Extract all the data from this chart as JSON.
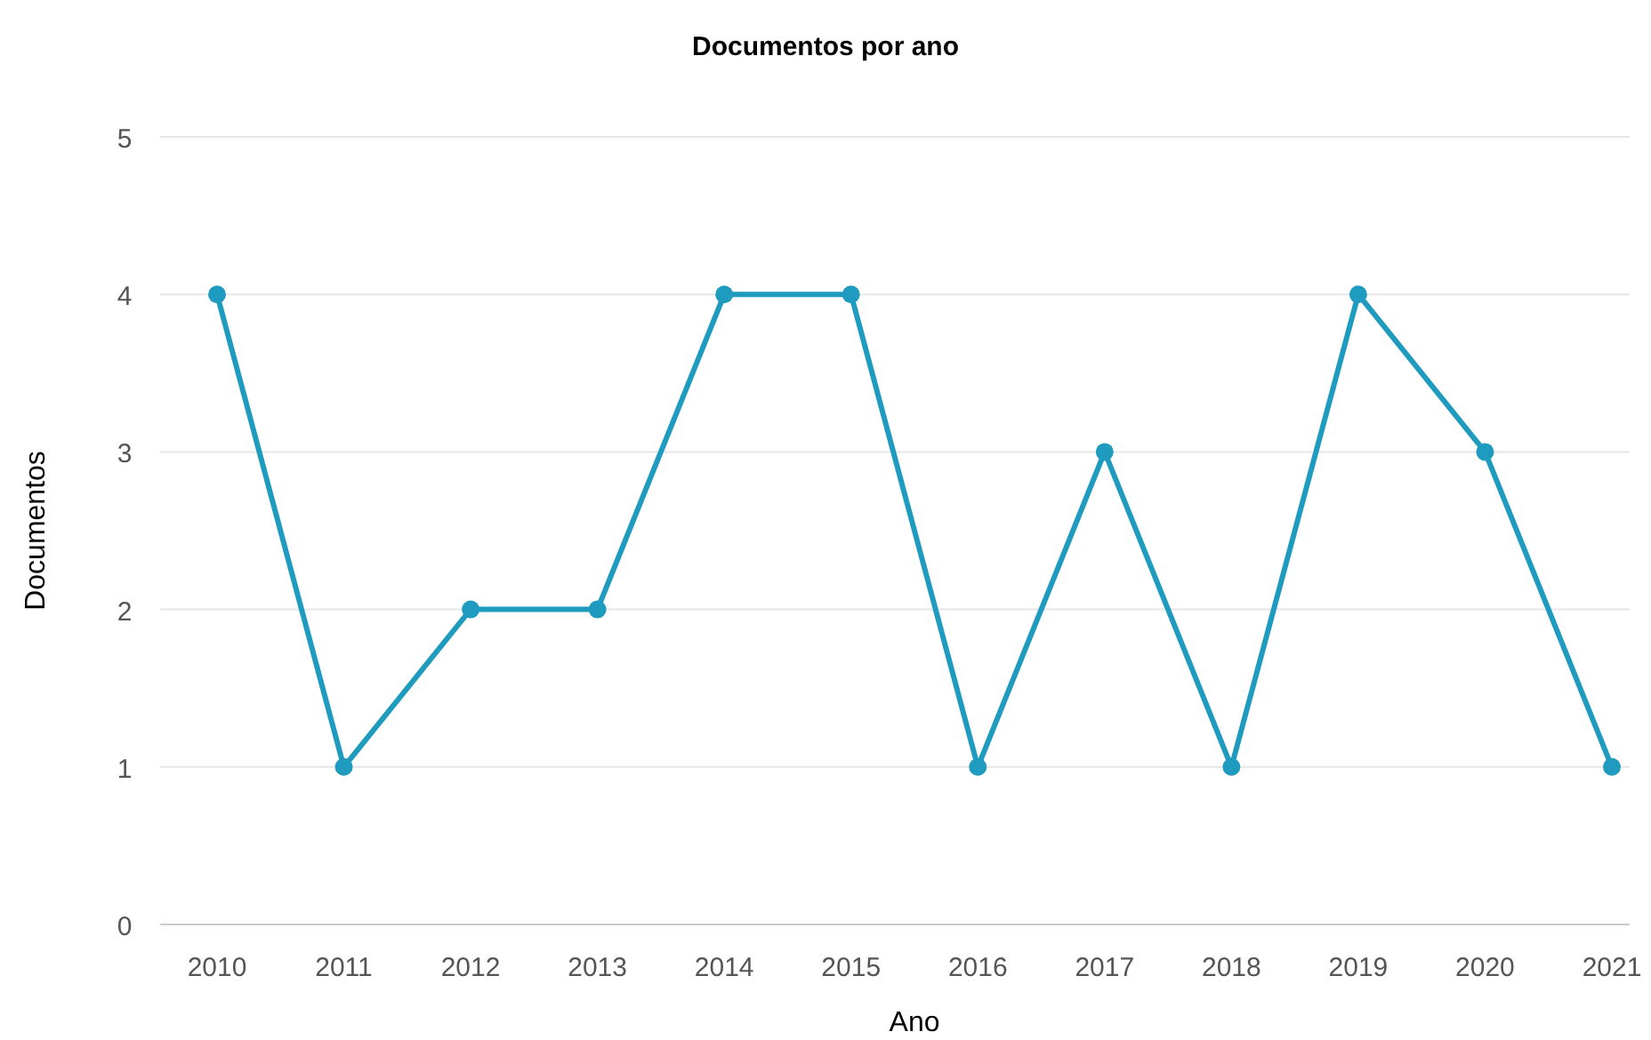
{
  "chart_data": {
    "type": "line",
    "title": "Documentos por ano",
    "xlabel": "Ano",
    "ylabel": "Documentos",
    "categories": [
      "2010",
      "2011",
      "2012",
      "2013",
      "2014",
      "2015",
      "2016",
      "2017",
      "2018",
      "2019",
      "2020",
      "2021"
    ],
    "series": [
      {
        "color": "#1f9bbf",
        "values": [
          4,
          1,
          2,
          2,
          4,
          4,
          1,
          3,
          1,
          4,
          3,
          1
        ]
      }
    ],
    "ylim": [
      0,
      5
    ],
    "yticks": [
      0,
      1,
      2,
      3,
      4,
      5
    ],
    "grid": "y",
    "marker": "circle",
    "line_style": "solid"
  }
}
